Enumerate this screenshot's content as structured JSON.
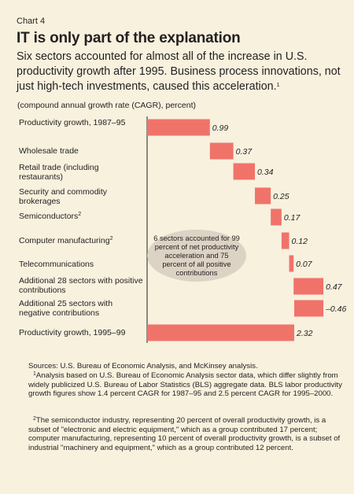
{
  "header": {
    "chart_number": "Chart 4",
    "title": "IT is only part of the explanation",
    "subtitle": "Six sectors accounted for almost all of the increase in U.S. productivity growth after 1995. Business process innovations, not just high-tech investments, caused this acceleration.",
    "subtitle_footnote": "1"
  },
  "chart_data": {
    "type": "bar",
    "orientation": "horizontal-waterfall",
    "unit_label": "(compound annual growth rate (CAGR), percent)",
    "categories": [
      {
        "label": "Productivity growth, 1987–95",
        "footnote": ""
      },
      {
        "label": "Wholesale trade",
        "footnote": ""
      },
      {
        "label": "Retail trade (including restaurants)",
        "footnote": ""
      },
      {
        "label": "Security and commodity brokerages",
        "footnote": ""
      },
      {
        "label": "Semiconductors",
        "footnote": "2"
      },
      {
        "label": "Computer manufacturing",
        "footnote": "2"
      },
      {
        "label": "Telecommunications",
        "footnote": ""
      },
      {
        "label": "Additional 28 sectors with positive contributions",
        "footnote": ""
      },
      {
        "label": "Additional 25 sectors with negative contributions",
        "footnote": ""
      },
      {
        "label": "Productivity growth, 1995–99",
        "footnote": ""
      }
    ],
    "values": [
      0.99,
      0.37,
      0.34,
      0.25,
      0.17,
      0.12,
      0.07,
      0.47,
      -0.46,
      2.32
    ],
    "value_labels": [
      "0.99",
      "0.37",
      "0.34",
      "0.25",
      "0.17",
      "0.12",
      "0.07",
      "0.47",
      "–0.46",
      "2.32"
    ],
    "bar_color": "#f0736a",
    "annotation": "6 sectors accounted for 99 percent of net productivity acceleration and 75 percent of all positive contributions"
  },
  "footnotes": {
    "sources": "Sources: U.S. Bureau of Economic Analysis, and McKinsey analysis.",
    "note1_marker": "1",
    "note1": "Analysis based on U.S. Bureau of Economic Analysis sector data, which differ slightly from widely publicized U.S. Bureau of Labor Statistics (BLS) aggregate data. BLS labor productivity growth figures show 1.4 percent CAGR for 1987–95 and 2.5 percent CAGR for 1995–2000.",
    "note2_marker": "2",
    "note2": "The semiconductor industry, representing 20 percent of overall productivity growth, is a subset of \"electronic and electric equipment,\" which as a group contributed 17 percent; computer manufacturing, representing 10 percent of overall productivity growth, is a subset of industrial \"machinery and equipment,\" which as a group contributed 12 percent."
  }
}
